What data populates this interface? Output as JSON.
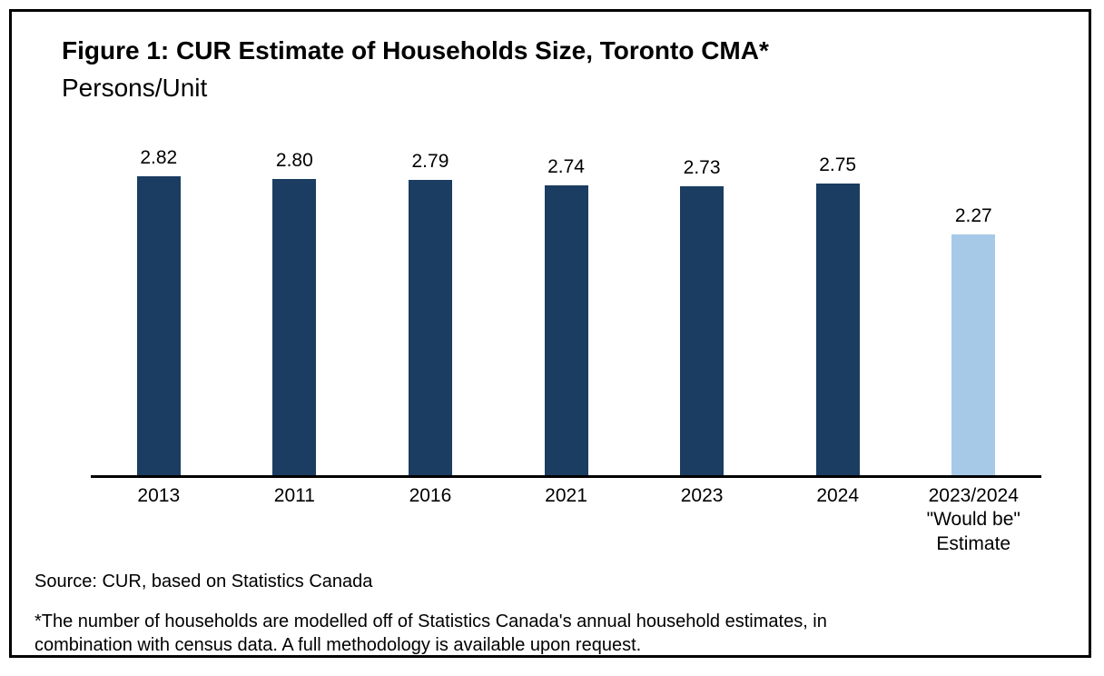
{
  "chart_data": {
    "type": "bar",
    "title": "Figure 1: CUR Estimate of Households Size, Toronto CMA*",
    "subtitle": "Persons/Unit",
    "categories": [
      "2013",
      "2011",
      "2016",
      "2021",
      "2023",
      "2024",
      "2023/2024\n\"Would be\"\nEstimate"
    ],
    "values": [
      2.82,
      2.8,
      2.79,
      2.74,
      2.73,
      2.75,
      2.27
    ],
    "value_labels": [
      "2.82",
      "2.80",
      "2.79",
      "2.74",
      "2.73",
      "2.75",
      "2.27"
    ],
    "bar_colors": [
      "#1B3D61",
      "#1B3D61",
      "#1B3D61",
      "#1B3D61",
      "#1B3D61",
      "#1B3D61",
      "#A6C9E8"
    ],
    "ylim": [
      0,
      3.2
    ],
    "xlabel": "",
    "ylabel": "",
    "grid": false,
    "legend": "none"
  },
  "footer": {
    "source": "Source: CUR, based on Statistics Canada",
    "footnote": "*The number of households are modelled off of Statistics Canada's annual household estimates, in combination with census data. A full methodology is available upon request."
  },
  "colors": {
    "bar_primary": "#1B3D61",
    "bar_highlight": "#A6C9E8",
    "axis": "#000000",
    "frame_border": "#000000",
    "background": "#FFFFFF"
  }
}
